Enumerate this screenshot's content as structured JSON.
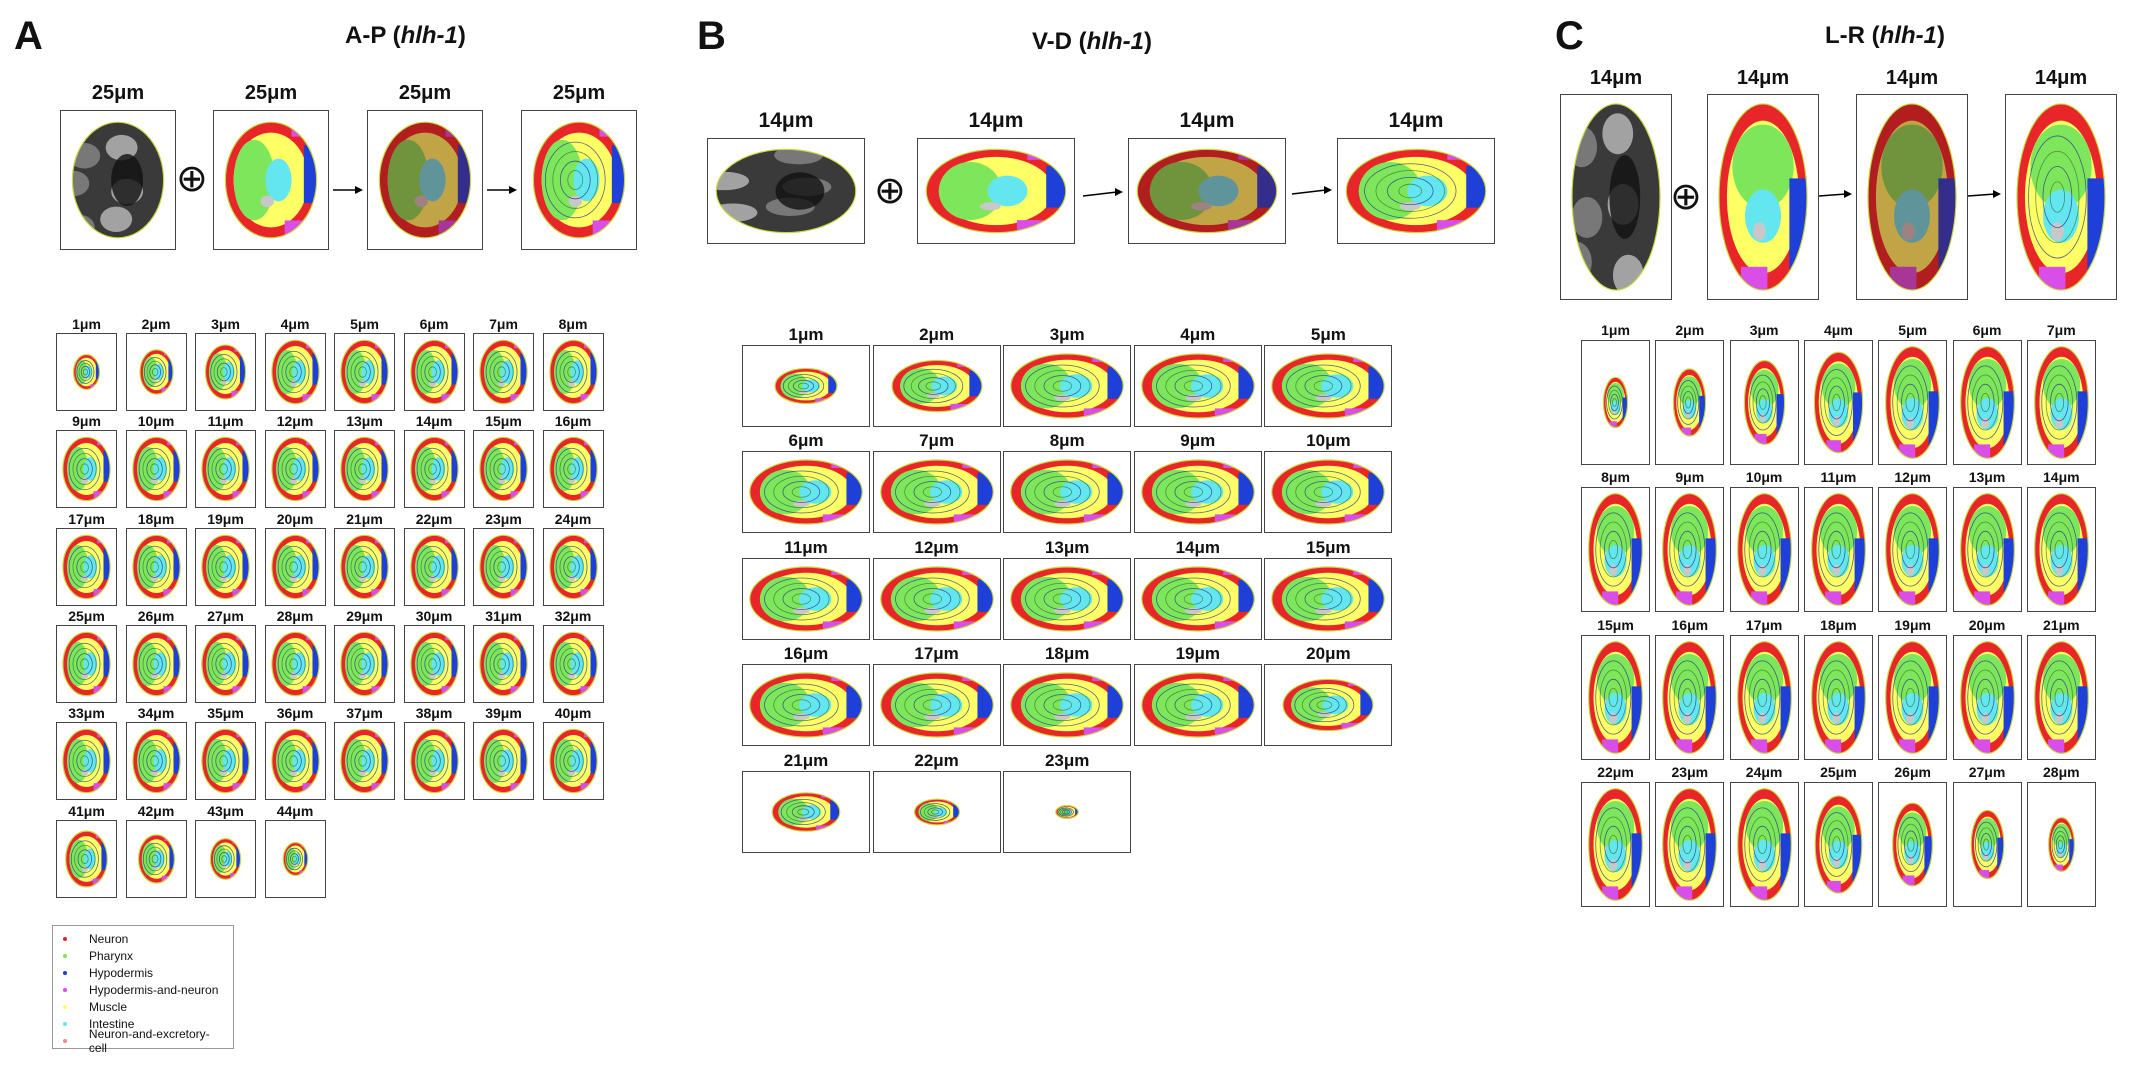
{
  "colors": {
    "neuron": "#e8262a",
    "pharynx": "#7ee65a",
    "hypodermis": "#1e3fd8",
    "hypodermis_and_neuron": "#d94ee8",
    "muscle": "#ffff66",
    "intestine": "#63e6f0",
    "neuron_and_excretory": "#f08a8a",
    "gray": "#c8c8c8"
  },
  "panels": {
    "a": {
      "letter": "A",
      "title_prefix": "A-P (",
      "title_gene": "hlh-1",
      "title_suffix": ")",
      "top_labels": [
        "25μm",
        "25μm",
        "25μm",
        "25μm"
      ],
      "slices": [
        "1μm",
        "2μm",
        "3μm",
        "4μm",
        "5μm",
        "6μm",
        "7μm",
        "8μm",
        "9μm",
        "10μm",
        "11μm",
        "12μm",
        "13μm",
        "14μm",
        "15μm",
        "16μm",
        "17μm",
        "18μm",
        "19μm",
        "20μm",
        "21μm",
        "22μm",
        "23μm",
        "24μm",
        "25μm",
        "26μm",
        "27μm",
        "28μm",
        "29μm",
        "30μm",
        "31μm",
        "32μm",
        "33μm",
        "34μm",
        "35μm",
        "36μm",
        "37μm",
        "38μm",
        "39μm",
        "40μm",
        "41μm",
        "42μm",
        "43μm",
        "44μm"
      ]
    },
    "b": {
      "letter": "B",
      "title_prefix": "V-D (",
      "title_gene": "hlh-1",
      "title_suffix": ")",
      "top_labels": [
        "14μm",
        "14μm",
        "14μm",
        "14μm"
      ],
      "slices": [
        "1μm",
        "2μm",
        "3μm",
        "4μm",
        "5μm",
        "6μm",
        "7μm",
        "8μm",
        "9μm",
        "10μm",
        "11μm",
        "12μm",
        "13μm",
        "14μm",
        "15μm",
        "16μm",
        "17μm",
        "18μm",
        "19μm",
        "20μm",
        "21μm",
        "22μm",
        "23μm"
      ]
    },
    "c": {
      "letter": "C",
      "title_prefix": "L-R (",
      "title_gene": "hlh-1",
      "title_suffix": ")",
      "top_labels": [
        "14μm",
        "14μm",
        "14μm",
        "14μm"
      ],
      "slices": [
        "1μm",
        "2μm",
        "3μm",
        "4μm",
        "5μm",
        "6μm",
        "7μm",
        "8μm",
        "9μm",
        "10μm",
        "11μm",
        "12μm",
        "13μm",
        "14μm",
        "15μm",
        "16μm",
        "17μm",
        "18μm",
        "19μm",
        "20μm",
        "21μm",
        "22μm",
        "23μm",
        "24μm",
        "25μm",
        "26μm",
        "27μm",
        "28μm"
      ]
    }
  },
  "operator_symbol": "⊕",
  "legend": [
    {
      "label": "Neuron",
      "color": "#e8262a"
    },
    {
      "label": "Pharynx",
      "color": "#7ee65a"
    },
    {
      "label": "Hypodermis",
      "color": "#1e3fd8"
    },
    {
      "label": "Hypodermis-and-neuron",
      "color": "#d94ee8"
    },
    {
      "label": "Muscle",
      "color": "#ffff66"
    },
    {
      "label": "Intestine",
      "color": "#63e6f0"
    },
    {
      "label": "Neuron-and-excretory-cell",
      "color": "#f08a8a"
    }
  ]
}
